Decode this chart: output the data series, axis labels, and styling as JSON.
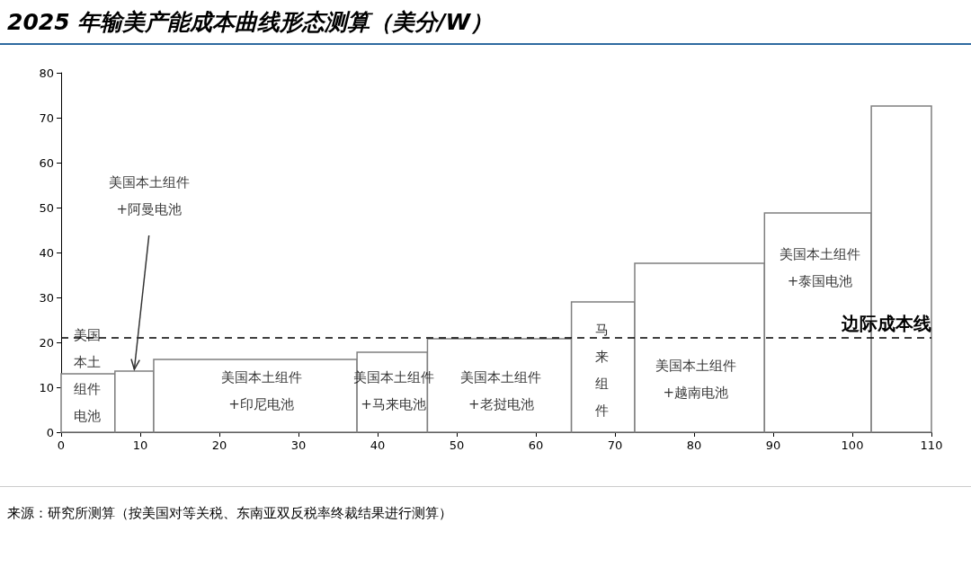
{
  "chart_data": {
    "type": "histogram",
    "title": "2025 年输美产能成本曲线形态测算（美分/W）",
    "bins": [
      0,
      6.8,
      11.7,
      37.4,
      46.3,
      64.5,
      72.5,
      88.9,
      102.4,
      110
    ],
    "values": [
      13,
      13.6,
      16.2,
      17.8,
      20.8,
      29,
      37.6,
      48.8,
      72.6
    ],
    "color": "#7f7f7f",
    "xlim": [
      0,
      110
    ],
    "xticks": [
      0,
      10,
      20,
      30,
      40,
      50,
      60,
      70,
      80,
      90,
      100,
      110
    ],
    "ylim": [
      0,
      80
    ],
    "yticks": [
      0,
      10,
      20,
      30,
      40,
      50,
      60,
      70,
      80
    ],
    "grid": false,
    "ref_lines": [
      {
        "axis": "y",
        "value": 21,
        "label": "边际成本线",
        "line_style": "dashed",
        "color": "#000000"
      }
    ],
    "annotations": [
      "美国本土组件电池",
      "美国本土组件+阿曼电池",
      "美国本土组件+印尼电池",
      "美国本土组件+马来电池",
      "美国本土组件+老挝电池",
      "马来组件",
      "美国本土组件+越南电池",
      "美国本土组件+泰国电池",
      "来源：研究所测算（按美国对等关税、东南亚双反税率终裁结果进行测算）"
    ]
  }
}
